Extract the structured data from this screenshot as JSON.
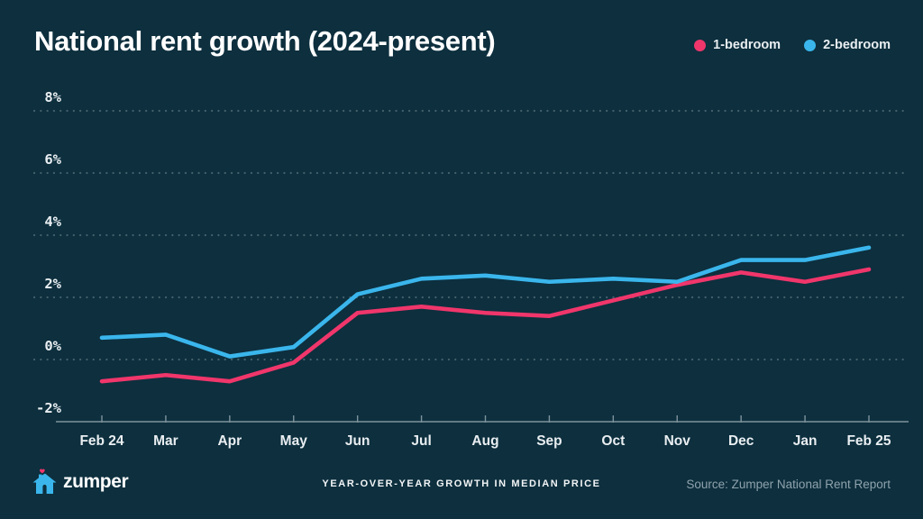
{
  "header": {
    "title": "National rent growth (2024-present)"
  },
  "legend": [
    {
      "label": "1-bedroom",
      "color": "#F0366B"
    },
    {
      "label": "2-bedroom",
      "color": "#3AB6EC"
    }
  ],
  "chart_data": {
    "type": "line",
    "x": [
      "Feb 24",
      "Mar",
      "Apr",
      "May",
      "Jun",
      "Jul",
      "Aug",
      "Sep",
      "Oct",
      "Nov",
      "Dec",
      "Jan",
      "Feb 25"
    ],
    "series": [
      {
        "name": "1-bedroom",
        "color": "#F0366B",
        "values": [
          -0.7,
          -0.5,
          -0.7,
          -0.1,
          1.5,
          1.7,
          1.5,
          1.4,
          1.9,
          2.4,
          2.8,
          2.5,
          2.9
        ]
      },
      {
        "name": "2-bedroom",
        "color": "#3AB6EC",
        "values": [
          0.7,
          0.8,
          0.1,
          0.4,
          2.1,
          2.6,
          2.7,
          2.5,
          2.6,
          2.5,
          3.2,
          3.2,
          3.6
        ]
      }
    ],
    "title": "National rent growth (2024-present)",
    "xlabel": "",
    "ylabel": "",
    "ylim": [
      -2,
      8
    ],
    "yticks": [
      8,
      6,
      4,
      2,
      0,
      -2
    ],
    "ytick_suffix": "%",
    "grid": "dotted-horizontal",
    "legend_position": "top-right"
  },
  "footer": {
    "brand": "zumper",
    "caption": "YEAR-OVER-YEAR GROWTH IN MEDIAN PRICE",
    "source": "Source: Zumper National Rent Report"
  },
  "colors": {
    "background": "#0D2F3E",
    "one_bedroom_line": "#F0366B",
    "two_bedroom_line": "#3AB6EC",
    "gridline": "#44606C",
    "axis_line": "#7E939C",
    "tick_text": "#E9EEF1",
    "muted_text": "#8FA3AD",
    "title_text": "#FFFFFF"
  }
}
